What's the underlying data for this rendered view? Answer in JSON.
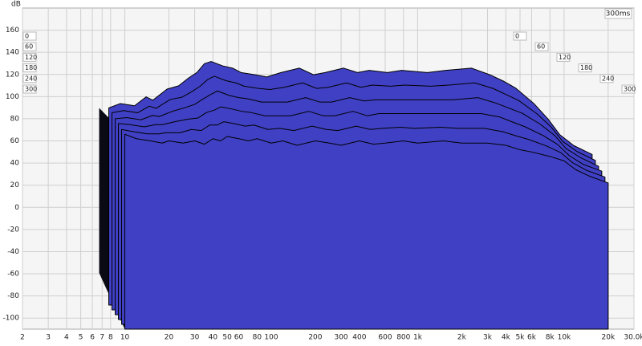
{
  "chart_data": {
    "type": "waterfall",
    "y_label": "dB",
    "x_unit": "Hz",
    "time_window": "300ms",
    "color": "#4040c4",
    "grid": true,
    "log_x": true,
    "xlim": [
      2,
      30000
    ],
    "ylim": [
      -110,
      180
    ],
    "yticks": [
      160,
      140,
      120,
      100,
      80,
      60,
      40,
      20,
      0,
      -20,
      -40,
      -60,
      -80,
      -100
    ],
    "xticks": [
      2,
      3,
      4,
      5,
      6,
      7,
      8,
      10,
      20,
      30,
      40,
      50,
      60,
      80,
      100,
      200,
      300,
      400,
      600,
      800,
      {
        "value": 1000,
        "label": "1k"
      },
      {
        "value": 2000,
        "label": "2k"
      },
      {
        "value": 3000,
        "label": "3k"
      },
      {
        "value": 4000,
        "label": "4k"
      },
      {
        "value": 5000,
        "label": "5k"
      },
      {
        "value": 6000,
        "label": "6k"
      },
      {
        "value": 8000,
        "label": "8k"
      },
      {
        "value": 10000,
        "label": "10k"
      },
      {
        "value": 20000,
        "label": "20k"
      },
      {
        "value": 30000,
        "label": "30.0k"
      }
    ],
    "x": [
      10,
      12,
      15,
      18,
      20,
      25,
      30,
      35,
      40,
      45,
      50,
      60,
      70,
      80,
      100,
      120,
      150,
      200,
      250,
      300,
      400,
      500,
      600,
      800,
      1000,
      1500,
      2000,
      3000,
      4000,
      5000,
      6000,
      8000,
      10000,
      12000,
      15000,
      20000
    ],
    "series": [
      {
        "name": "0",
        "values": [
          68,
          72,
          70,
          78,
          75,
          85,
          88,
          95,
          100,
          108,
          110,
          106,
          104,
          100,
          98,
          96,
          100,
          104,
          98,
          100,
          104,
          100,
          102,
          100,
          102,
          100,
          102,
          104,
          98,
          92,
          86,
          72,
          58,
          44,
          34,
          26
        ]
      },
      {
        "name": "60",
        "values": [
          68,
          70,
          68,
          74,
          72,
          80,
          82,
          87,
          92,
          98,
          101,
          97,
          95,
          92,
          90,
          89,
          91,
          95,
          90,
          91,
          95,
          91,
          93,
          92,
          93,
          92,
          93,
          95,
          90,
          84,
          79,
          67,
          55,
          42,
          33,
          25
        ]
      },
      {
        "name": "120",
        "values": [
          67,
          68,
          66,
          70,
          69,
          74,
          77,
          80,
          85,
          89,
          92,
          88,
          86,
          85,
          82,
          82,
          82,
          86,
          82,
          82,
          86,
          83,
          84,
          84,
          84,
          84,
          84,
          86,
          81,
          76,
          72,
          62,
          52,
          40,
          32,
          24
        ]
      },
      {
        "name": "180",
        "values": [
          67,
          66,
          64,
          66,
          66,
          69,
          71,
          72,
          77,
          79,
          82,
          80,
          78,
          77,
          74,
          74,
          74,
          78,
          74,
          74,
          78,
          74,
          76,
          76,
          76,
          76,
          76,
          76,
          73,
          68,
          64,
          56,
          48,
          38,
          30,
          24
        ]
      },
      {
        "name": "240",
        "values": [
          66,
          64,
          62,
          62,
          63,
          63,
          66,
          65,
          70,
          70,
          73,
          71,
          69,
          70,
          66,
          67,
          65,
          69,
          66,
          65,
          69,
          66,
          67,
          68,
          67,
          68,
          67,
          67,
          64,
          60,
          57,
          51,
          45,
          36,
          29,
          23
        ]
      },
      {
        "name": "300",
        "values": [
          66,
          62,
          60,
          58,
          60,
          58,
          60,
          57,
          62,
          60,
          64,
          62,
          60,
          62,
          58,
          60,
          56,
          60,
          58,
          56,
          60,
          57,
          58,
          60,
          58,
          60,
          58,
          58,
          56,
          52,
          50,
          46,
          42,
          34,
          28,
          22
        ]
      }
    ]
  }
}
